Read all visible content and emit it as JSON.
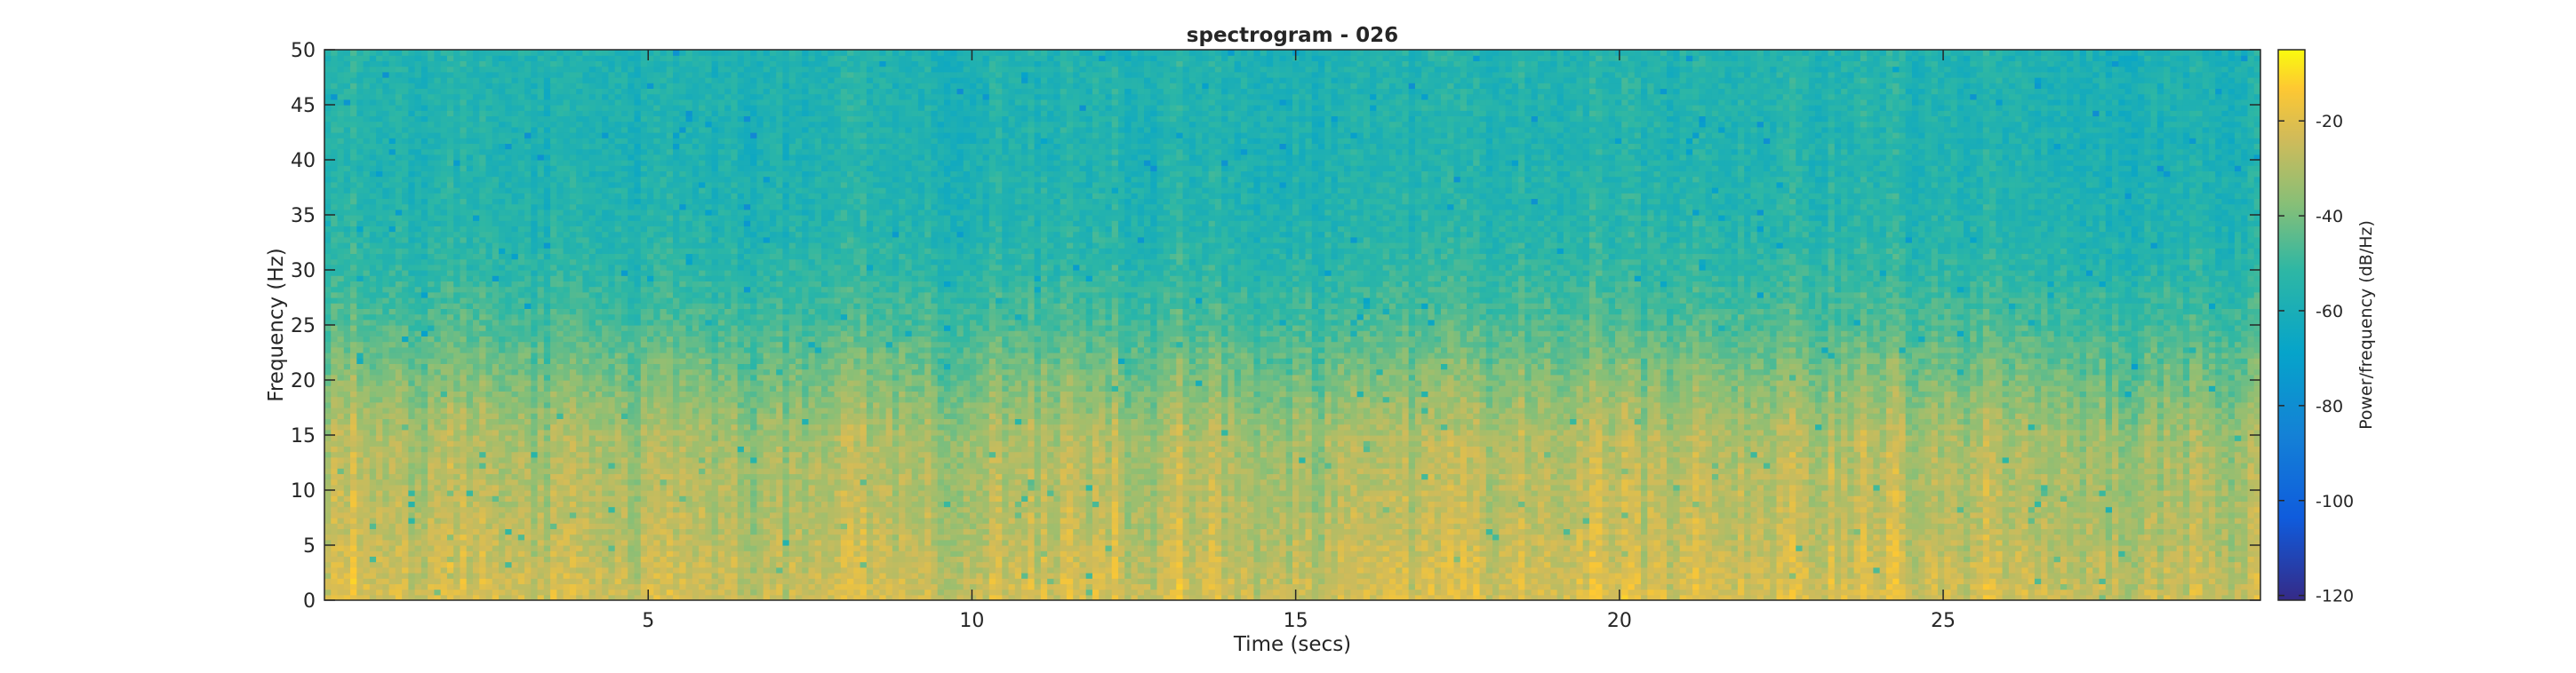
{
  "chart_data": {
    "type": "heatmap",
    "title": "spectrogram - 026",
    "xlabel": "Time (secs)",
    "ylabel": "Frequency (Hz)",
    "colorbar_label": "Power/frequency (dB/Hz)",
    "colormap": "parula",
    "xlim": [
      0,
      29.9
    ],
    "ylim": [
      0,
      50
    ],
    "clim": [
      -121,
      -5
    ],
    "x_ticks": [
      5,
      10,
      15,
      20,
      25
    ],
    "y_ticks": [
      0,
      5,
      10,
      15,
      20,
      25,
      30,
      35,
      40,
      45,
      50
    ],
    "colorbar_ticks": [
      -20,
      -40,
      -60,
      -80,
      -100,
      -120
    ],
    "power_profile_db": {
      "frequency_hz": [
        0,
        5,
        10,
        15,
        20,
        25,
        30,
        35,
        40,
        45,
        50
      ],
      "typical_power_db": [
        -22,
        -26,
        -28,
        -30,
        -38,
        -46,
        -52,
        -55,
        -56,
        -56,
        -56
      ]
    }
  }
}
